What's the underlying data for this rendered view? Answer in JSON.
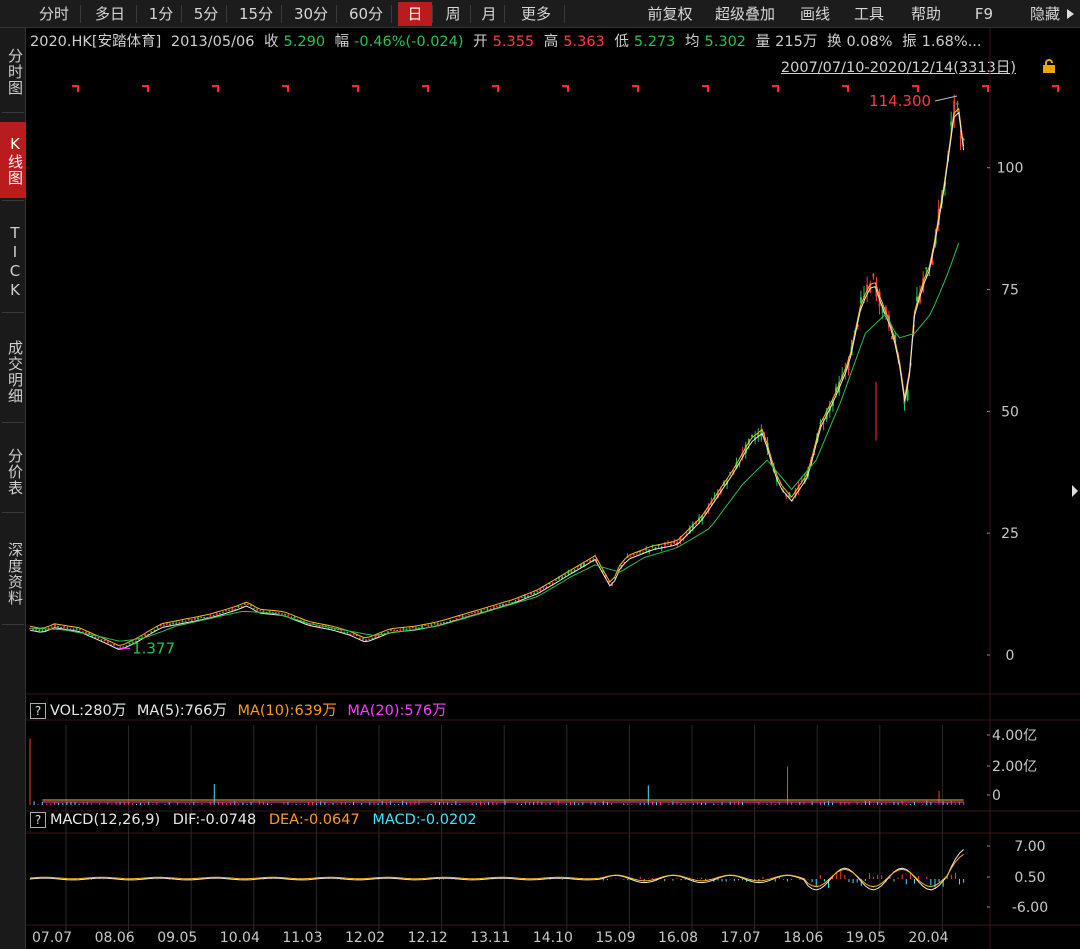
{
  "toolbar": {
    "periods": [
      "分时",
      "多日",
      "1分",
      "5分",
      "15分",
      "30分",
      "60分",
      "日",
      "周",
      "月",
      "更多"
    ],
    "active_period": "日",
    "tools": [
      "前复权",
      "超级叠加",
      "画线",
      "工具",
      "帮助",
      "F9",
      "隐藏"
    ]
  },
  "sidebar": {
    "tabs": [
      "分时图",
      "K线图",
      "TICK",
      "成交明细",
      "分价表",
      "深度资料"
    ],
    "active": "K线图"
  },
  "quote": {
    "symbol": "2020.HK[安踏体育]",
    "date": "2013/05/06",
    "close_label": "收",
    "close": "5.290",
    "change_label": "幅",
    "change": "-0.46%(-0.024)",
    "open_label": "开",
    "open": "5.355",
    "high_label": "高",
    "high": "5.363",
    "low_label": "低",
    "low": "5.273",
    "avg_label": "均",
    "avg": "5.302",
    "volume_label": "量",
    "volume": "215万",
    "turnover_label": "换",
    "turnover": "0.08%",
    "amplitude_label": "振",
    "amplitude": "1.68%..."
  },
  "range_label": "2007/07/10-2020/12/14(3313日)",
  "colors": {
    "up": "#ff3b3b",
    "down": "#27c44a",
    "ma5": "#e8e8e8",
    "ma10": "#ffb619",
    "ma20": "#ff3cff",
    "ma60": "#27c44a",
    "grid": "#3a1414"
  },
  "volume_panel": {
    "label": "VOL:280万",
    "ma5": "MA(5):766万",
    "ma10": "MA(10):639万",
    "ma20": "MA(20):576万",
    "y_ticks": [
      "4.00亿",
      "2.00亿",
      "0"
    ]
  },
  "macd_panel": {
    "label": "MACD(12,26,9)",
    "dif": "DIF:-0.0748",
    "dea": "DEA:-0.0647",
    "macd": "MACD:-0.0202",
    "y_ticks": [
      "7.00",
      "0.50",
      "-6.00"
    ]
  },
  "chart_data": {
    "type": "line",
    "x_ticks": [
      "07.07",
      "08.06",
      "09.05",
      "10.04",
      "11.03",
      "12.02",
      "12.12",
      "13.11",
      "14.10",
      "15.09",
      "16.08",
      "17.07",
      "18.06",
      "19.05",
      "20.04"
    ],
    "y_ticks": [
      100,
      75,
      50,
      25,
      0
    ],
    "ylim": [
      -8,
      118
    ],
    "annotations": [
      {
        "text": "114.300",
        "value": 114.3
      },
      {
        "text": "1.377",
        "value": 1.377
      }
    ],
    "price": [
      [
        0,
        5.5
      ],
      [
        1.5,
        5
      ],
      [
        3,
        6
      ],
      [
        6,
        5.2
      ],
      [
        9,
        3
      ],
      [
        11,
        1.4
      ],
      [
        13,
        3
      ],
      [
        16,
        6
      ],
      [
        19,
        7
      ],
      [
        22,
        8
      ],
      [
        25,
        9.5
      ],
      [
        26.5,
        10.5
      ],
      [
        28,
        9
      ],
      [
        31,
        8.5
      ],
      [
        34,
        6.5
      ],
      [
        37,
        5.5
      ],
      [
        39,
        4.5
      ],
      [
        41,
        3
      ],
      [
        44,
        5
      ],
      [
        47,
        5.5
      ],
      [
        50,
        6.5
      ],
      [
        53,
        8
      ],
      [
        56,
        9.5
      ],
      [
        59,
        11
      ],
      [
        62,
        13
      ],
      [
        65,
        16
      ],
      [
        67,
        18
      ],
      [
        69,
        20
      ],
      [
        70,
        17
      ],
      [
        71,
        14
      ],
      [
        72,
        18
      ],
      [
        73,
        20
      ],
      [
        76,
        22
      ],
      [
        79,
        23
      ],
      [
        82,
        28
      ],
      [
        84,
        33
      ],
      [
        86,
        38
      ],
      [
        88,
        44
      ],
      [
        89.5,
        46
      ],
      [
        90.5,
        40
      ],
      [
        91.5,
        35
      ],
      [
        93,
        32
      ],
      [
        95,
        37
      ],
      [
        96.5,
        47
      ],
      [
        98,
        52
      ],
      [
        100,
        60
      ],
      [
        101.5,
        72
      ],
      [
        103,
        77
      ],
      [
        104,
        72
      ],
      [
        105,
        68
      ],
      [
        106,
        62
      ],
      [
        107,
        50
      ],
      [
        108,
        70
      ],
      [
        109,
        76
      ],
      [
        110,
        80
      ],
      [
        111,
        90
      ],
      [
        112,
        100
      ],
      [
        112.5,
        108
      ],
      [
        113.2,
        114.3
      ],
      [
        114,
        104
      ]
    ],
    "ma_slow": [
      [
        0,
        5.5
      ],
      [
        4,
        5.2
      ],
      [
        8,
        4
      ],
      [
        11,
        2.8
      ],
      [
        14,
        3.5
      ],
      [
        18,
        6
      ],
      [
        22,
        7.5
      ],
      [
        26,
        9
      ],
      [
        30,
        8.5
      ],
      [
        34,
        6.5
      ],
      [
        38,
        5.2
      ],
      [
        42,
        4
      ],
      [
        46,
        5
      ],
      [
        50,
        6
      ],
      [
        54,
        8
      ],
      [
        58,
        10
      ],
      [
        62,
        12
      ],
      [
        66,
        16
      ],
      [
        69,
        18.5
      ],
      [
        72,
        17
      ],
      [
        75,
        20
      ],
      [
        79,
        22
      ],
      [
        83,
        26
      ],
      [
        87,
        35
      ],
      [
        90,
        40
      ],
      [
        93,
        34
      ],
      [
        96,
        40
      ],
      [
        99,
        52
      ],
      [
        102,
        66
      ],
      [
        104.5,
        70
      ],
      [
        106,
        65
      ],
      [
        108,
        66
      ],
      [
        110,
        70
      ],
      [
        112,
        78
      ],
      [
        113.5,
        85
      ]
    ]
  }
}
